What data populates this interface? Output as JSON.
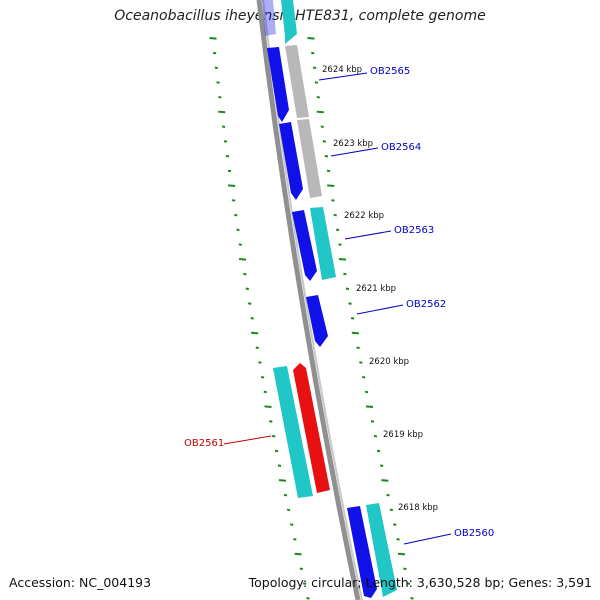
{
  "title": "Oceanobacillus iheyensis HTE831, complete genome",
  "footer": {
    "accession": "Accession: NC_004193",
    "summary": "Topology: circular; Length: 3,630,528 bp; Genes: 3,591"
  },
  "colors": {
    "cds_forward": "#1010e8",
    "cds_reverse": "#21c6c6",
    "rna_gray": "#b8b8b8",
    "highlighted_gene": "#e81010",
    "tick_green": "#1a8a1a",
    "label_blue": "#0000c0",
    "label_red": "#c00000"
  },
  "scale_labels": [
    "2624 kbp",
    "2623 kbp",
    "2622 kbp",
    "2621 kbp",
    "2620 kbp",
    "2619 kbp",
    "2618 kbp"
  ],
  "genes": [
    {
      "name": "OB2565",
      "color": "blue"
    },
    {
      "name": "OB2564",
      "color": "blue"
    },
    {
      "name": "OB2563",
      "color": "blue"
    },
    {
      "name": "OB2562",
      "color": "blue"
    },
    {
      "name": "OB2561",
      "color": "red"
    },
    {
      "name": "OB2560",
      "color": "blue"
    }
  ]
}
